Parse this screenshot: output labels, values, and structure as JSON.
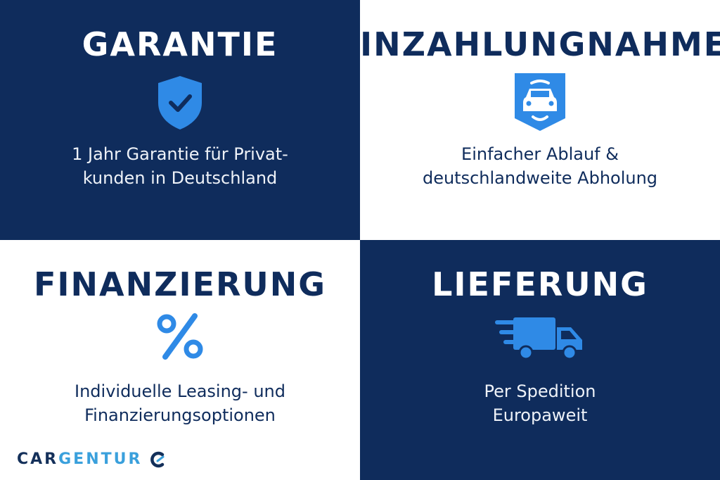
{
  "colors": {
    "navy": "#0f2c5c",
    "accent": "#2f8ae6",
    "white": "#ffffff"
  },
  "panels": [
    {
      "title": "GARANTIE",
      "icon": "shield-check-icon",
      "lines": [
        "1 Jahr Garantie für Privat-",
        "kunden in Deutschland"
      ]
    },
    {
      "title": "INZAHLUNGNAHME",
      "icon": "car-badge-icon",
      "lines": [
        "Einfacher Ablauf &",
        "deutschlandweite Abholung"
      ]
    },
    {
      "title": "FINANZIERUNG",
      "icon": "percent-icon",
      "lines": [
        "Individuelle Leasing- und",
        "Finanzierungsoptionen"
      ]
    },
    {
      "title": "LIEFERUNG",
      "icon": "delivery-truck-icon",
      "lines": [
        "Per Spedition",
        "Europaweit"
      ]
    }
  ],
  "logo": {
    "part1": "CAR",
    "part2": "GENTUR",
    "icon": "cargentur-c-icon"
  }
}
